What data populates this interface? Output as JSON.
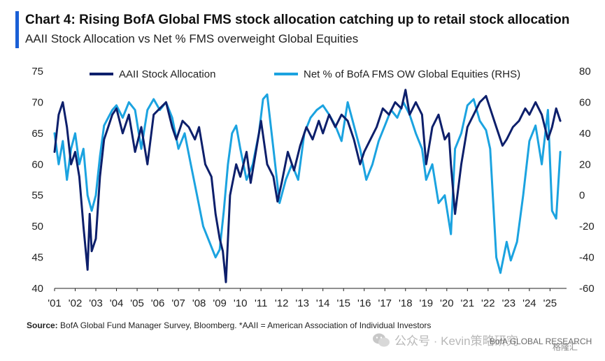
{
  "header": {
    "title": "Chart 4: Rising BofA Global FMS stock allocation catching up to retail stock allocation",
    "subtitle": "AAII Stock Allocation vs Net % FMS overweight Global Equities"
  },
  "footer": {
    "source_label": "Source:",
    "source_text": " BofA Global Fund Manager Survey, Bloomberg. *AAII = American Association of Individual Investors",
    "wechat_label": "公众号 · Kevin策略研究",
    "brand": "BofA GLOBAL RESEARCH",
    "watermark_logo": "格隆汇"
  },
  "colors": {
    "accent": "#1a5fd6",
    "aaii": "#0d1f6b",
    "fms": "#1ba3e0"
  },
  "chart_data": {
    "type": "line",
    "title": "",
    "xlabel": "",
    "ylabel": "",
    "x_ticks": [
      "'01",
      "'02",
      "'03",
      "'04",
      "'05",
      "'06",
      "'07",
      "'08",
      "'09",
      "'10",
      "'11",
      "'12",
      "'13",
      "'14",
      "'15",
      "'16",
      "'17",
      "'18",
      "'19",
      "'20",
      "'21",
      "'22",
      "'23",
      "'24",
      "'25"
    ],
    "ylim_left": [
      40,
      75
    ],
    "yticks_left": [
      40,
      45,
      50,
      55,
      60,
      65,
      70,
      75
    ],
    "ylim_right": [
      -60,
      80
    ],
    "yticks_right": [
      -60,
      -40,
      -20,
      0,
      20,
      40,
      60,
      80
    ],
    "grid": false,
    "legend_position": "top",
    "series": [
      {
        "name": "AAII Stock Allocation",
        "axis": "left",
        "color": "#0d1f6b",
        "x": [
          2001.0,
          2001.2,
          2001.4,
          2001.6,
          2001.8,
          2002.0,
          2002.2,
          2002.4,
          2002.6,
          2002.7,
          2002.8,
          2003.0,
          2003.2,
          2003.4,
          2003.6,
          2003.8,
          2004.0,
          2004.3,
          2004.6,
          2004.9,
          2005.2,
          2005.5,
          2005.8,
          2006.1,
          2006.4,
          2006.7,
          2006.9,
          2007.2,
          2007.5,
          2007.8,
          2008.0,
          2008.3,
          2008.6,
          2008.8,
          2009.0,
          2009.15,
          2009.3,
          2009.5,
          2009.8,
          2010.0,
          2010.3,
          2010.5,
          2010.8,
          2011.0,
          2011.3,
          2011.6,
          2011.8,
          2012.0,
          2012.3,
          2012.6,
          2012.9,
          2013.2,
          2013.5,
          2013.8,
          2014.0,
          2014.3,
          2014.6,
          2014.9,
          2015.2,
          2015.5,
          2015.8,
          2016.0,
          2016.3,
          2016.6,
          2016.9,
          2017.2,
          2017.5,
          2017.8,
          2018.0,
          2018.2,
          2018.5,
          2018.8,
          2019.0,
          2019.3,
          2019.6,
          2019.9,
          2020.1,
          2020.2,
          2020.4,
          2020.7,
          2021.0,
          2021.3,
          2021.6,
          2021.9,
          2022.1,
          2022.4,
          2022.7,
          2022.9,
          2023.2,
          2023.5,
          2023.8,
          2024.0,
          2024.3,
          2024.6,
          2024.9,
          2025.1,
          2025.3,
          2025.5
        ],
        "y": [
          62,
          68,
          70,
          66,
          60,
          62,
          58,
          50,
          43,
          52,
          46,
          48,
          58,
          64,
          66,
          68,
          69,
          65,
          68,
          62,
          66,
          60,
          68,
          69,
          70,
          66,
          64,
          67,
          66,
          64,
          66,
          60,
          58,
          52,
          48,
          46,
          41,
          55,
          60,
          58,
          62,
          57,
          63,
          67,
          60,
          58,
          54,
          57,
          62,
          59,
          63,
          66,
          64,
          67,
          65,
          68,
          66,
          68,
          67,
          64,
          60,
          62,
          64,
          66,
          69,
          68,
          70,
          69,
          72,
          68,
          70,
          68,
          60,
          66,
          68,
          64,
          65,
          60,
          52,
          60,
          66,
          68,
          70,
          71,
          69,
          66,
          63,
          64,
          66,
          67,
          69,
          68,
          70,
          68,
          64,
          66,
          69,
          67
        ]
      },
      {
        "name": "Net % of BofA FMS OW Global Equities (RHS)",
        "axis": "right",
        "color": "#1ba3e0",
        "x": [
          2001.0,
          2001.2,
          2001.4,
          2001.6,
          2001.8,
          2002.0,
          2002.2,
          2002.4,
          2002.6,
          2002.8,
          2003.0,
          2003.2,
          2003.4,
          2003.6,
          2003.8,
          2004.0,
          2004.3,
          2004.6,
          2004.9,
          2005.2,
          2005.5,
          2005.8,
          2006.1,
          2006.4,
          2006.7,
          2007.0,
          2007.3,
          2007.6,
          2007.9,
          2008.2,
          2008.5,
          2008.8,
          2009.0,
          2009.2,
          2009.4,
          2009.6,
          2009.8,
          2010.0,
          2010.3,
          2010.6,
          2010.9,
          2011.1,
          2011.3,
          2011.6,
          2011.9,
          2012.2,
          2012.5,
          2012.8,
          2013.1,
          2013.4,
          2013.7,
          2014.0,
          2014.3,
          2014.6,
          2014.9,
          2015.2,
          2015.5,
          2015.8,
          2016.1,
          2016.4,
          2016.7,
          2017.0,
          2017.3,
          2017.6,
          2017.9,
          2018.2,
          2018.5,
          2018.8,
          2019.0,
          2019.3,
          2019.6,
          2019.9,
          2020.2,
          2020.4,
          2020.7,
          2021.0,
          2021.3,
          2021.6,
          2021.9,
          2022.1,
          2022.4,
          2022.6,
          2022.9,
          2023.1,
          2023.4,
          2023.7,
          2024.0,
          2024.3,
          2024.6,
          2024.9,
          2025.1,
          2025.3,
          2025.5
        ],
        "y": [
          40,
          20,
          35,
          10,
          30,
          40,
          20,
          30,
          0,
          -10,
          0,
          25,
          45,
          50,
          55,
          58,
          50,
          60,
          55,
          30,
          55,
          62,
          55,
          60,
          50,
          30,
          40,
          20,
          0,
          -20,
          -30,
          -40,
          -35,
          -10,
          20,
          40,
          45,
          30,
          10,
          20,
          40,
          62,
          65,
          30,
          -5,
          10,
          20,
          10,
          40,
          50,
          55,
          58,
          52,
          45,
          35,
          60,
          45,
          30,
          10,
          20,
          35,
          45,
          55,
          50,
          60,
          52,
          40,
          30,
          10,
          20,
          -5,
          0,
          -25,
          30,
          40,
          58,
          62,
          48,
          42,
          30,
          -40,
          -50,
          -30,
          -42,
          -30,
          0,
          35,
          45,
          20,
          55,
          -10,
          -15,
          28
        ]
      }
    ]
  }
}
